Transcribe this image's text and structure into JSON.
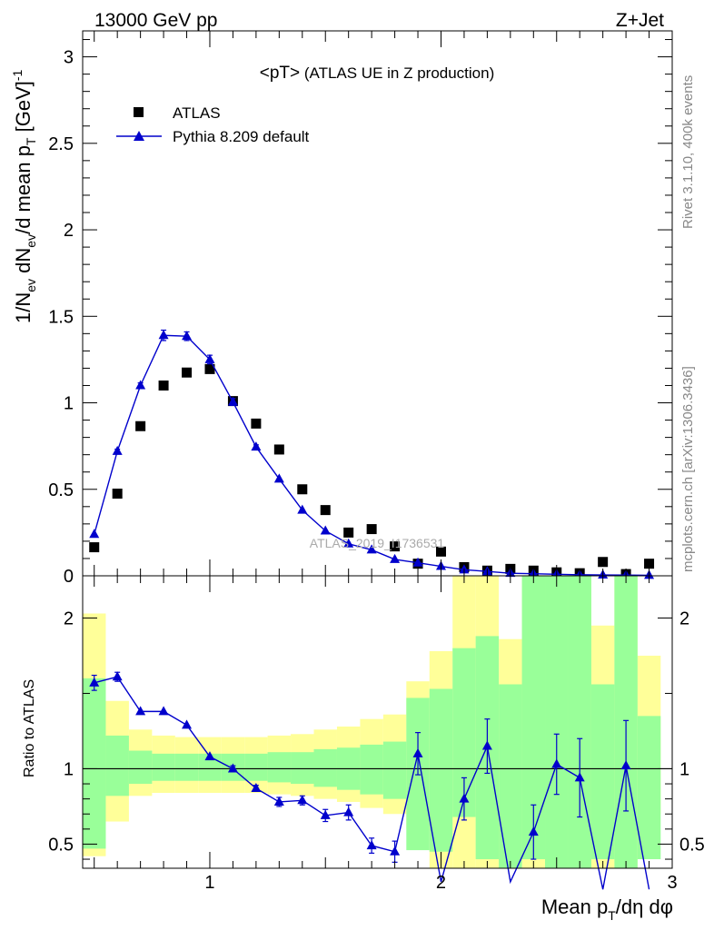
{
  "header": {
    "energy": "13000 GeV pp",
    "process": "Z+Jet"
  },
  "side_labels": {
    "rivet": "Rivet 3.1.10,  400k events",
    "mcplots": "mcplots.cern.ch [arXiv:1306.3436]"
  },
  "watermark": "ATLAS_2019_I1736531",
  "chart_data": [
    {
      "type": "scatter",
      "panel": "main",
      "title_main": "<pT>",
      "title_detail": "(ATLAS UE in Z production)",
      "ylabel": "1/N_ev dN_ev/d mean p_T [GeV]^-1",
      "ylim": [
        0,
        3.15
      ],
      "xlim": [
        0.45,
        3.0
      ],
      "log_x": false,
      "y_ticks": [
        0,
        0.5,
        1,
        1.5,
        2,
        2.5,
        3
      ],
      "y_tick_labels": [
        "0",
        "0.5",
        "1",
        "1.5",
        "2",
        "2.5",
        "3"
      ],
      "legend_placement": "top-left",
      "series": [
        {
          "name": "ATLAS",
          "color": "#000000",
          "marker": "square",
          "x": [
            0.5,
            0.6,
            0.7,
            0.8,
            0.9,
            1.0,
            1.1,
            1.2,
            1.3,
            1.4,
            1.5,
            1.6,
            1.7,
            1.8,
            1.9,
            2.0,
            2.1,
            2.2,
            2.3,
            2.4,
            2.5,
            2.6,
            2.7,
            2.8,
            2.9
          ],
          "y": [
            0.165,
            0.475,
            0.865,
            1.1,
            1.175,
            1.195,
            1.01,
            0.88,
            0.73,
            0.5,
            0.38,
            0.25,
            0.27,
            0.17,
            0.07,
            0.14,
            0.05,
            0.03,
            0.04,
            0.03,
            0.02,
            0.015,
            0.08,
            0.01,
            0.07
          ]
        },
        {
          "name": "Pythia 8.209 default",
          "color": "#0000cc",
          "marker": "triangle",
          "x": [
            0.5,
            0.6,
            0.7,
            0.8,
            0.9,
            1.0,
            1.1,
            1.2,
            1.3,
            1.4,
            1.5,
            1.6,
            1.7,
            1.8,
            1.9,
            2.0,
            2.1,
            2.2,
            2.3,
            2.4,
            2.5,
            2.6,
            2.7,
            2.8,
            2.9
          ],
          "y": [
            0.24,
            0.72,
            1.1,
            1.39,
            1.385,
            1.25,
            1.005,
            0.745,
            0.56,
            0.38,
            0.26,
            0.185,
            0.15,
            0.095,
            0.075,
            0.055,
            0.035,
            0.025,
            0.015,
            0.012,
            0.009,
            0.006,
            0.005,
            0.004,
            0.003
          ],
          "err": [
            0.01,
            0.012,
            0.015,
            0.03,
            0.025,
            0.025,
            0.02,
            0.012,
            0.01,
            0.008,
            0.006,
            0.005,
            0.004,
            0.003,
            0.003,
            0.002,
            0.002,
            0.002,
            0.001,
            0.001,
            0.001,
            0.001,
            0.001,
            0.001,
            0.001
          ]
        }
      ]
    },
    {
      "type": "line",
      "panel": "ratio",
      "ylabel": "Ratio to ATLAS",
      "xlabel": "Mean p_T/dη dφ",
      "ylim": [
        0.34,
        2.28
      ],
      "xlim": [
        0.45,
        3.0
      ],
      "x_ticks": [
        1,
        2,
        3
      ],
      "x_tick_labels": [
        "1",
        "2",
        "3"
      ],
      "y_ticks": [
        0.5,
        1,
        2
      ],
      "y_tick_labels": [
        "0.5",
        "1",
        "2"
      ],
      "reference_line": 1,
      "bins": {
        "edges": [
          0.45,
          0.55,
          0.65,
          0.75,
          0.85,
          0.95,
          1.05,
          1.15,
          1.25,
          1.35,
          1.45,
          1.55,
          1.65,
          1.75,
          1.85,
          1.95,
          2.05,
          2.15,
          2.25,
          2.35,
          2.45,
          2.55,
          2.65,
          2.75,
          2.85,
          2.95
        ],
        "band_2sigma": {
          "color": "#ffff99",
          "lo": [
            0.42,
            0.65,
            0.82,
            0.84,
            0.84,
            0.84,
            0.84,
            0.84,
            0.83,
            0.82,
            0.8,
            0.78,
            0.74,
            0.7,
            0.6,
            0.3,
            0.3,
            0.2,
            0.2,
            0.2,
            0.2,
            0.2,
            0.2,
            0.2,
            0.7
          ],
          "hi": [
            2.03,
            1.45,
            1.26,
            1.22,
            1.21,
            1.21,
            1.21,
            1.21,
            1.22,
            1.23,
            1.26,
            1.28,
            1.33,
            1.36,
            1.58,
            1.78,
            2.4,
            2.4,
            1.86,
            2.4,
            2.4,
            2.4,
            1.95,
            2.4,
            1.75
          ]
        },
        "band_1sigma": {
          "color": "#99ff99",
          "lo": [
            0.47,
            0.82,
            0.9,
            0.92,
            0.92,
            0.92,
            0.92,
            0.92,
            0.91,
            0.9,
            0.88,
            0.86,
            0.83,
            0.8,
            0.46,
            0.45,
            0.68,
            0.4,
            0.2,
            0.4,
            0.2,
            0.2,
            0.4,
            0.2,
            0.4
          ],
          "hi": [
            1.6,
            1.22,
            1.12,
            1.1,
            1.1,
            1.1,
            1.1,
            1.1,
            1.11,
            1.11,
            1.13,
            1.14,
            1.16,
            1.18,
            1.47,
            1.53,
            1.8,
            1.88,
            1.56,
            2.4,
            2.4,
            2.4,
            1.56,
            2.4,
            1.35
          ]
        }
      },
      "series": [
        {
          "name": "Pythia 8.209 default",
          "color": "#0000cc",
          "marker": "triangle",
          "x": [
            0.5,
            0.6,
            0.7,
            0.8,
            0.9,
            1.0,
            1.1,
            1.2,
            1.3,
            1.4,
            1.5,
            1.6,
            1.7,
            1.8,
            1.9,
            2.0,
            2.1,
            2.2,
            2.3,
            2.4,
            2.5,
            2.6,
            2.7,
            2.8,
            2.9
          ],
          "y": [
            1.57,
            1.61,
            1.38,
            1.38,
            1.29,
            1.08,
            1.0,
            0.87,
            0.78,
            0.79,
            0.69,
            0.71,
            0.49,
            0.45,
            1.1,
            0.25,
            0.8,
            1.15,
            0.25,
            0.58,
            1.03,
            0.94,
            0.2,
            1.02,
            0.2
          ],
          "err": [
            0.05,
            0.03,
            0.0,
            0.0,
            0.0,
            0.0,
            0.02,
            0.02,
            0.03,
            0.03,
            0.04,
            0.05,
            0.05,
            0.07,
            0.14,
            0.07,
            0.14,
            0.18,
            0.0,
            0.18,
            0.2,
            0.26,
            0.0,
            0.3,
            0.0
          ]
        }
      ]
    }
  ]
}
